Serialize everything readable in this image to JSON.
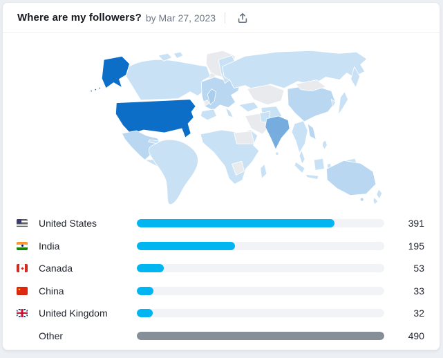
{
  "header": {
    "title": "Where are my followers?",
    "byline": "by Mar 27, 2023",
    "share_icon": "upload-icon"
  },
  "chart_data": {
    "type": "bar",
    "orientation": "horizontal",
    "title": "Where are my followers?",
    "date": "Mar 27, 2023",
    "value_axis_max": 490,
    "categories": [
      "United States",
      "India",
      "Canada",
      "China",
      "United Kingdom",
      "Other"
    ],
    "values": [
      391,
      195,
      53,
      33,
      32,
      490
    ],
    "rows": [
      {
        "label": "United States",
        "flag": "us",
        "value": 391,
        "bar_color": "#00B5F0"
      },
      {
        "label": "India",
        "flag": "in",
        "value": 195,
        "bar_color": "#00B5F0"
      },
      {
        "label": "Canada",
        "flag": "ca",
        "value": 53,
        "bar_color": "#00B5F0"
      },
      {
        "label": "China",
        "flag": "cn",
        "value": 33,
        "bar_color": "#00B5F0"
      },
      {
        "label": "United Kingdom",
        "flag": "gb",
        "value": 32,
        "bar_color": "#00B5F0"
      },
      {
        "label": "Other",
        "flag": "none",
        "value": 490,
        "bar_color": "#868E98"
      }
    ]
  },
  "map": {
    "type": "world-choropleth",
    "highlights": [
      {
        "country": "United States",
        "color": "#0D6EC8"
      },
      {
        "country": "India",
        "color": "#77ACDE"
      }
    ],
    "default_fill": "#C9E1F5",
    "no_data_fill": "#E8EAED"
  },
  "colors": {
    "accent_bar": "#00B5F0",
    "other_bar": "#868E98",
    "bar_track": "#F1F3F7",
    "card_bg": "#FFFFFF",
    "page_bg": "#ECEFF4"
  }
}
